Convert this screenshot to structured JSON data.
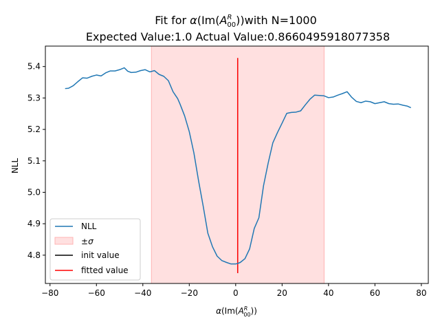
{
  "chart_data": {
    "type": "line",
    "title_line1_prefix": "Fit for ",
    "title_line1_greek": "α",
    "title_line1_mid": "(Im(",
    "title_line1_A": "A",
    "title_line1_sup": "R",
    "title_line1_sub": "00",
    "title_line1_suffix": "))with N=1000",
    "title_line2": "Expected Value:1.0 Actual Value:0.8660495918077358",
    "ylabel": "NLL",
    "xlabel_prefix": "α",
    "xlabel_mid": "(Im(",
    "xlabel_A": "A",
    "xlabel_sup": "R",
    "xlabel_sub": "00",
    "xlabel_suffix": "))",
    "xlim": [
      -82,
      83
    ],
    "ylim": [
      4.71,
      5.465
    ],
    "xticks": [
      -80,
      -60,
      -40,
      -20,
      0,
      20,
      40,
      60,
      80
    ],
    "yticks": [
      4.8,
      4.9,
      5.0,
      5.1,
      5.2,
      5.3,
      5.4
    ],
    "grid": false,
    "legend_position": "lower-left",
    "sigma_band": {
      "x_min": -36.3,
      "x_max": 38.1,
      "color": "#ffcccc"
    },
    "init_value": {
      "x": 0.866,
      "y_min": 4.743,
      "y_max": 5.427,
      "color": "#000000"
    },
    "fitted_value": {
      "x": 0.866,
      "y_min": 4.743,
      "y_max": 5.427,
      "color": "#ff0000"
    },
    "series": [
      {
        "name": "NLL",
        "color": "#1f77b4",
        "x": [
          -73.5,
          -72,
          -70,
          -68,
          -66,
          -64,
          -62,
          -60,
          -58,
          -56,
          -54,
          -52,
          -50,
          -48,
          -46.5,
          -45,
          -43,
          -41,
          -39,
          -37,
          -35,
          -33,
          -31,
          -29,
          -27,
          -25,
          -24,
          -22,
          -20,
          -18,
          -16,
          -14,
          -12,
          -10,
          -8,
          -6,
          -4,
          -2,
          0,
          1,
          2,
          4,
          6,
          8,
          10,
          12,
          14,
          16,
          18,
          20,
          22,
          24,
          26,
          28,
          30,
          32,
          34,
          36,
          38,
          40,
          42,
          44,
          46,
          48,
          50,
          52,
          54,
          56,
          58,
          60,
          62,
          64,
          66,
          68,
          70,
          72,
          74,
          75.5
        ],
        "y": [
          5.33,
          5.331,
          5.339,
          5.352,
          5.364,
          5.363,
          5.369,
          5.373,
          5.37,
          5.38,
          5.386,
          5.386,
          5.39,
          5.396,
          5.385,
          5.381,
          5.382,
          5.387,
          5.39,
          5.383,
          5.387,
          5.375,
          5.369,
          5.355,
          5.32,
          5.298,
          5.281,
          5.243,
          5.193,
          5.125,
          5.037,
          4.956,
          4.87,
          4.827,
          4.797,
          4.783,
          4.777,
          4.772,
          4.772,
          4.774,
          4.777,
          4.789,
          4.82,
          4.885,
          4.919,
          5.021,
          5.093,
          5.157,
          5.19,
          5.22,
          5.251,
          5.254,
          5.255,
          5.259,
          5.278,
          5.296,
          5.309,
          5.308,
          5.307,
          5.301,
          5.303,
          5.309,
          5.314,
          5.32,
          5.302,
          5.289,
          5.285,
          5.29,
          5.288,
          5.282,
          5.285,
          5.288,
          5.282,
          5.28,
          5.281,
          5.277,
          5.274,
          5.269
        ]
      }
    ],
    "legend": {
      "nll": "NLL",
      "sigma_pm": "±",
      "sigma_greek": "σ",
      "init": "init value",
      "fitted": "fitted value"
    }
  }
}
